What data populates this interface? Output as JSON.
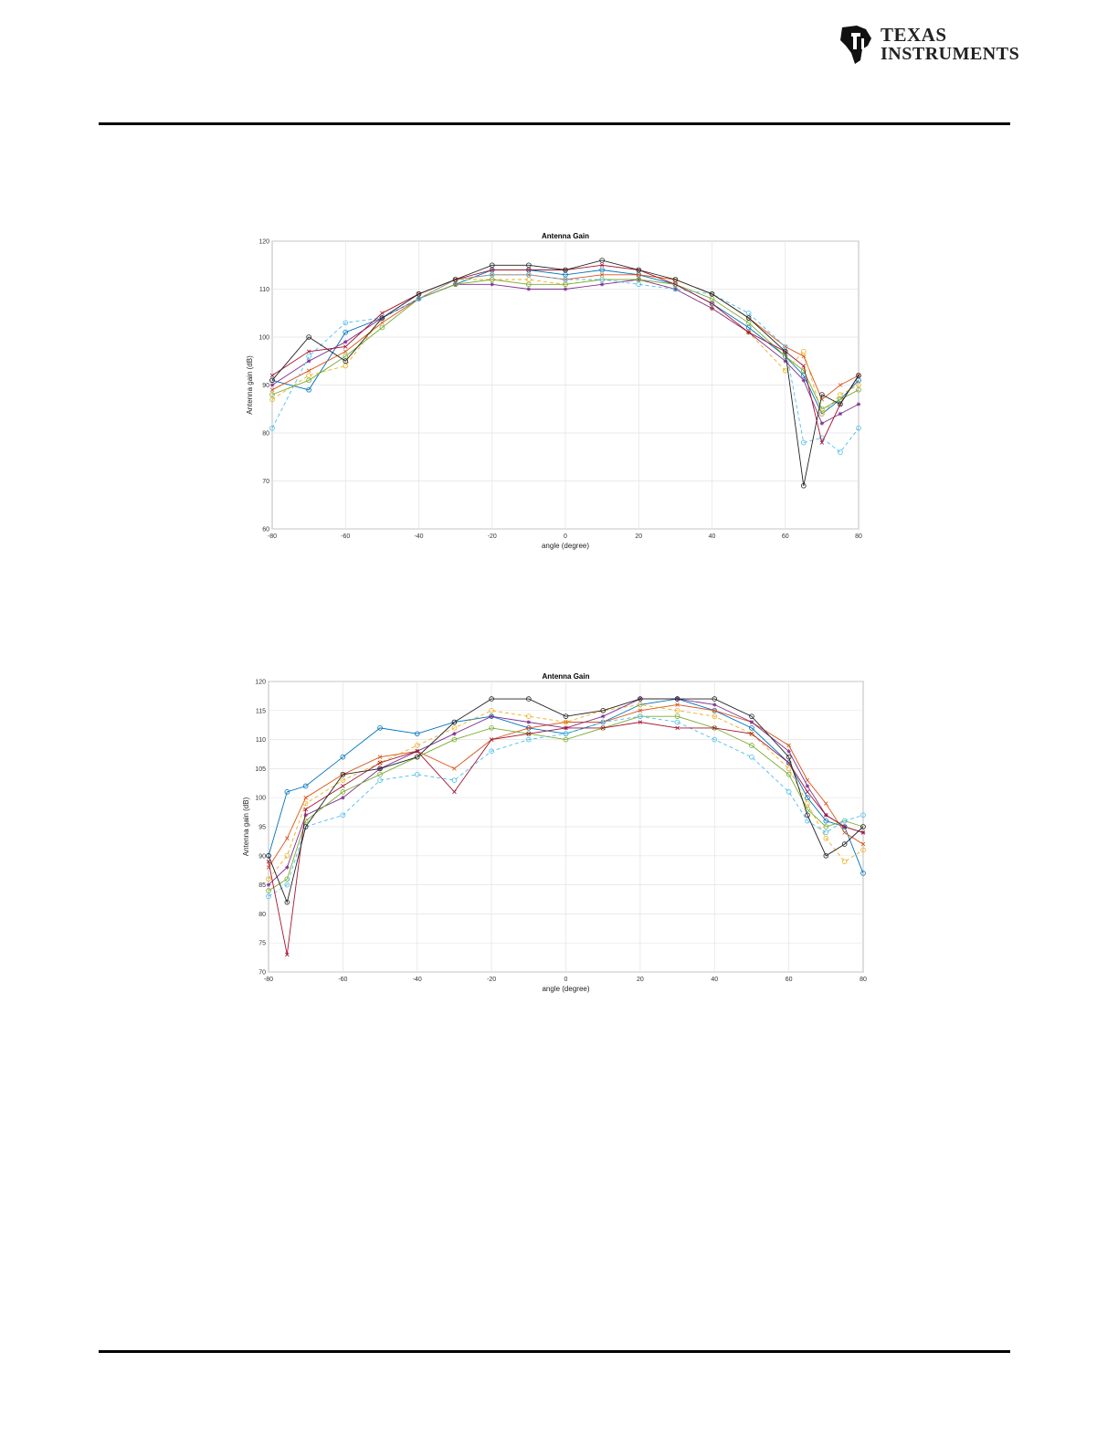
{
  "header": {
    "logo_line1": "TEXAS",
    "logo_line2": "INSTRUMENTS",
    "logo_icon": "ti-logo-icon"
  },
  "colors": [
    "#0072BD",
    "#D95319",
    "#EDB120",
    "#7E2F8E",
    "#77AC30",
    "#4DBEEE",
    "#A2142F",
    "#222222"
  ],
  "chart_data": [
    {
      "type": "line",
      "title": "Antenna Gain",
      "xlabel": "angle (degree)",
      "ylabel": "Antenna gain (dB)",
      "xlim": [
        -80,
        80
      ],
      "ylim": [
        60,
        120
      ],
      "xticks": [
        -80,
        -60,
        -40,
        -20,
        0,
        20,
        40,
        60,
        80
      ],
      "yticks": [
        60,
        70,
        80,
        90,
        100,
        110,
        120
      ],
      "grid": true,
      "x": [
        -80,
        -70,
        -60,
        -50,
        -40,
        -30,
        -20,
        -10,
        0,
        10,
        20,
        30,
        40,
        50,
        60,
        65,
        70,
        75,
        80
      ],
      "series": [
        {
          "values": [
            91,
            89,
            101,
            104,
            108,
            111,
            114,
            114,
            113,
            114,
            113,
            111,
            107,
            102,
            96,
            92,
            84,
            87,
            91
          ]
        },
        {
          "values": [
            89,
            93,
            97,
            103,
            108,
            112,
            113,
            113,
            112,
            113,
            113,
            112,
            109,
            104,
            98,
            96,
            87,
            90,
            92
          ]
        },
        {
          "values": [
            87,
            92,
            94,
            104,
            109,
            112,
            112,
            112,
            111,
            112,
            112,
            110,
            106,
            101,
            93,
            97,
            84,
            88,
            90
          ]
        },
        {
          "values": [
            90,
            95,
            99,
            104,
            108,
            111,
            111,
            110,
            110,
            111,
            112,
            110,
            106,
            101,
            95,
            91,
            82,
            84,
            86
          ]
        },
        {
          "values": [
            88,
            91,
            96,
            102,
            108,
            111,
            112,
            111,
            111,
            112,
            112,
            111,
            108,
            103,
            96,
            93,
            85,
            87,
            89
          ]
        },
        {
          "values": [
            81,
            96,
            103,
            104,
            108,
            112,
            113,
            113,
            112,
            112,
            111,
            110,
            109,
            105,
            98,
            78,
            79,
            76,
            81
          ]
        },
        {
          "values": [
            92,
            97,
            98,
            105,
            109,
            112,
            114,
            114,
            114,
            115,
            114,
            111,
            107,
            101,
            97,
            94,
            78,
            86,
            92
          ]
        },
        {
          "values": [
            91,
            100,
            95,
            104,
            109,
            112,
            115,
            115,
            114,
            116,
            114,
            112,
            109,
            104,
            97,
            69,
            88,
            86,
            92
          ]
        }
      ]
    },
    {
      "type": "line",
      "title": "Antenna Gain",
      "xlabel": "angle (degree)",
      "ylabel": "Antenna gain (dB)",
      "xlim": [
        -80,
        80
      ],
      "ylim": [
        70,
        120
      ],
      "xticks": [
        -80,
        -60,
        -40,
        -20,
        0,
        20,
        40,
        60,
        80
      ],
      "yticks": [
        70,
        75,
        80,
        85,
        90,
        95,
        100,
        105,
        110,
        115,
        120
      ],
      "grid": true,
      "x": [
        -80,
        -75,
        -70,
        -60,
        -50,
        -40,
        -30,
        -20,
        -10,
        0,
        10,
        20,
        30,
        40,
        50,
        60,
        65,
        70,
        75,
        80
      ],
      "series": [
        {
          "values": [
            90,
            101,
            102,
            107,
            112,
            111,
            113,
            114,
            112,
            111,
            113,
            116,
            117,
            115,
            112,
            106,
            100,
            96,
            95,
            87
          ]
        },
        {
          "values": [
            88,
            93,
            100,
            104,
            107,
            108,
            105,
            110,
            112,
            113,
            113,
            115,
            116,
            115,
            113,
            109,
            103,
            99,
            94,
            92
          ]
        },
        {
          "values": [
            86,
            90,
            99,
            103,
            106,
            109,
            112,
            115,
            114,
            113,
            115,
            116,
            115,
            114,
            111,
            105,
            99,
            93,
            89,
            91
          ]
        },
        {
          "values": [
            85,
            88,
            97,
            100,
            105,
            108,
            111,
            114,
            113,
            112,
            114,
            117,
            117,
            116,
            113,
            108,
            102,
            97,
            95,
            94
          ]
        },
        {
          "values": [
            84,
            86,
            96,
            101,
            104,
            107,
            110,
            112,
            111,
            110,
            112,
            114,
            114,
            112,
            109,
            104,
            98,
            95,
            96,
            95
          ]
        },
        {
          "values": [
            83,
            85,
            95,
            97,
            103,
            104,
            103,
            108,
            110,
            111,
            113,
            114,
            113,
            110,
            107,
            101,
            96,
            94,
            96,
            97
          ]
        },
        {
          "values": [
            89,
            73,
            98,
            102,
            106,
            108,
            101,
            110,
            111,
            112,
            112,
            113,
            112,
            112,
            111,
            106,
            101,
            97,
            95,
            94
          ]
        },
        {
          "values": [
            90,
            82,
            95,
            104,
            105,
            107,
            113,
            117,
            117,
            114,
            115,
            117,
            117,
            117,
            114,
            107,
            97,
            90,
            92,
            95
          ]
        }
      ]
    }
  ]
}
